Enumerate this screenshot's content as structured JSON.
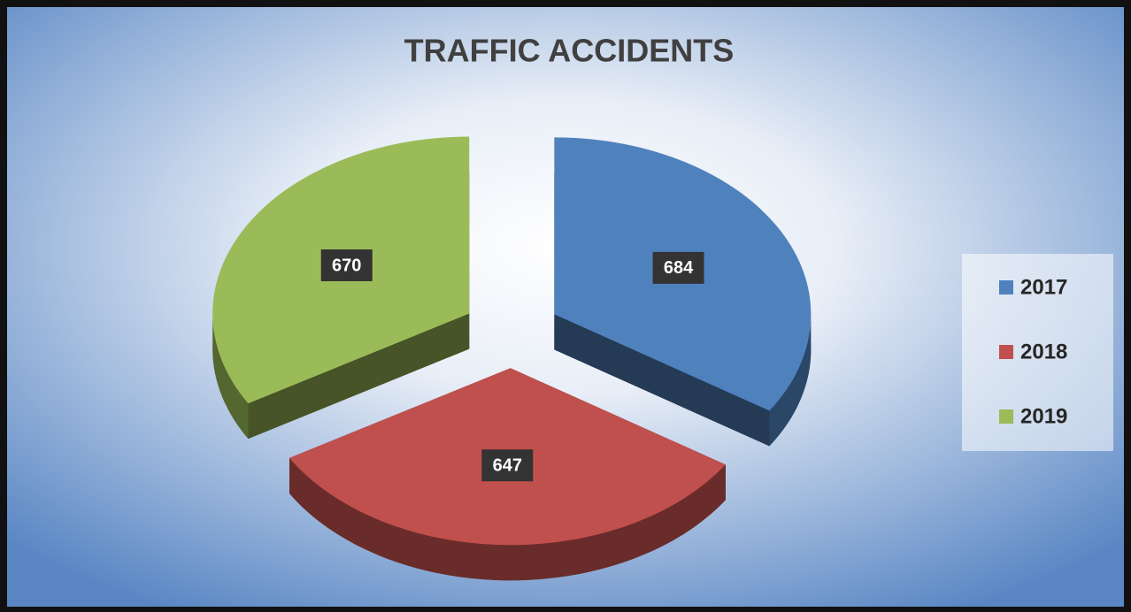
{
  "chart_data": {
    "type": "pie",
    "title": "TRAFFIC ACCIDENTS",
    "categories": [
      "2017",
      "2018",
      "2019"
    ],
    "values": [
      684,
      647,
      670
    ],
    "colors": [
      "#4f81bd",
      "#c0504d",
      "#9bbb59"
    ],
    "legend": "right"
  }
}
